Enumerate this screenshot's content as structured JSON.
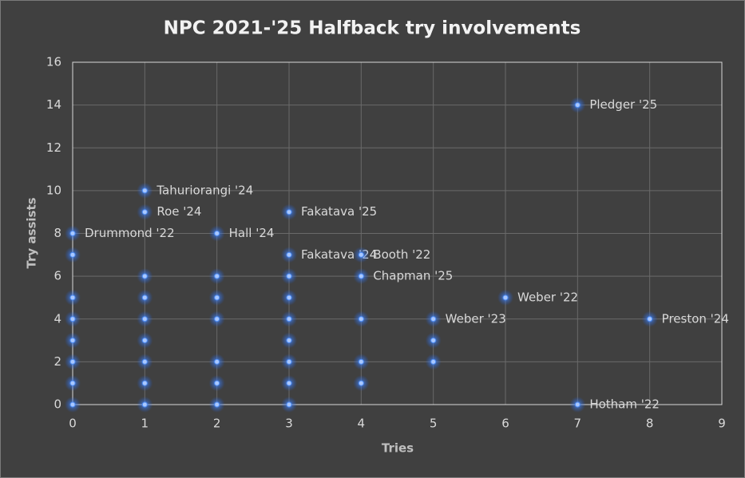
{
  "chart_data": {
    "type": "scatter",
    "title": "NPC 2021-'25 Halfback try involvements",
    "x_label": "Tries",
    "y_label": "Try assists",
    "xlim": [
      0,
      9
    ],
    "xticks": [
      0,
      1,
      2,
      3,
      4,
      5,
      6,
      7,
      8,
      9
    ],
    "ylim": [
      0,
      16
    ],
    "yticks": [
      0,
      2,
      4,
      6,
      8,
      10,
      12,
      14,
      16
    ],
    "grid": true,
    "color": "#4f8ef7",
    "x": [
      0,
      0,
      0,
      0,
      0,
      0,
      0,
      0,
      1,
      1,
      1,
      1,
      1,
      1,
      1,
      1,
      1,
      2,
      2,
      2,
      2,
      2,
      2,
      2,
      3,
      3,
      3,
      3,
      3,
      3,
      3,
      3,
      3,
      4,
      4,
      4,
      4,
      4,
      5,
      5,
      5,
      6,
      7,
      7,
      8
    ],
    "values": [
      0,
      1,
      2,
      3,
      4,
      5,
      7,
      8,
      0,
      1,
      2,
      3,
      4,
      5,
      6,
      9,
      10,
      0,
      1,
      2,
      4,
      5,
      6,
      8,
      0,
      1,
      2,
      3,
      4,
      5,
      6,
      7,
      9,
      1,
      2,
      4,
      6,
      7,
      2,
      3,
      4,
      5,
      0,
      14,
      4
    ],
    "labels": [
      null,
      null,
      null,
      null,
      null,
      null,
      null,
      "Drummond '22",
      null,
      null,
      null,
      null,
      null,
      null,
      null,
      "Roe '24",
      "Tahuriorangi '24",
      null,
      null,
      null,
      null,
      null,
      null,
      "Hall '24",
      null,
      null,
      null,
      null,
      null,
      null,
      null,
      "Fakatava '24",
      "Fakatava '25",
      null,
      null,
      null,
      "Chapman '25",
      "Booth '22",
      null,
      null,
      "Weber '23",
      "Weber '22",
      "Hotham '22",
      "Pledger '25",
      "Preston '24"
    ]
  }
}
